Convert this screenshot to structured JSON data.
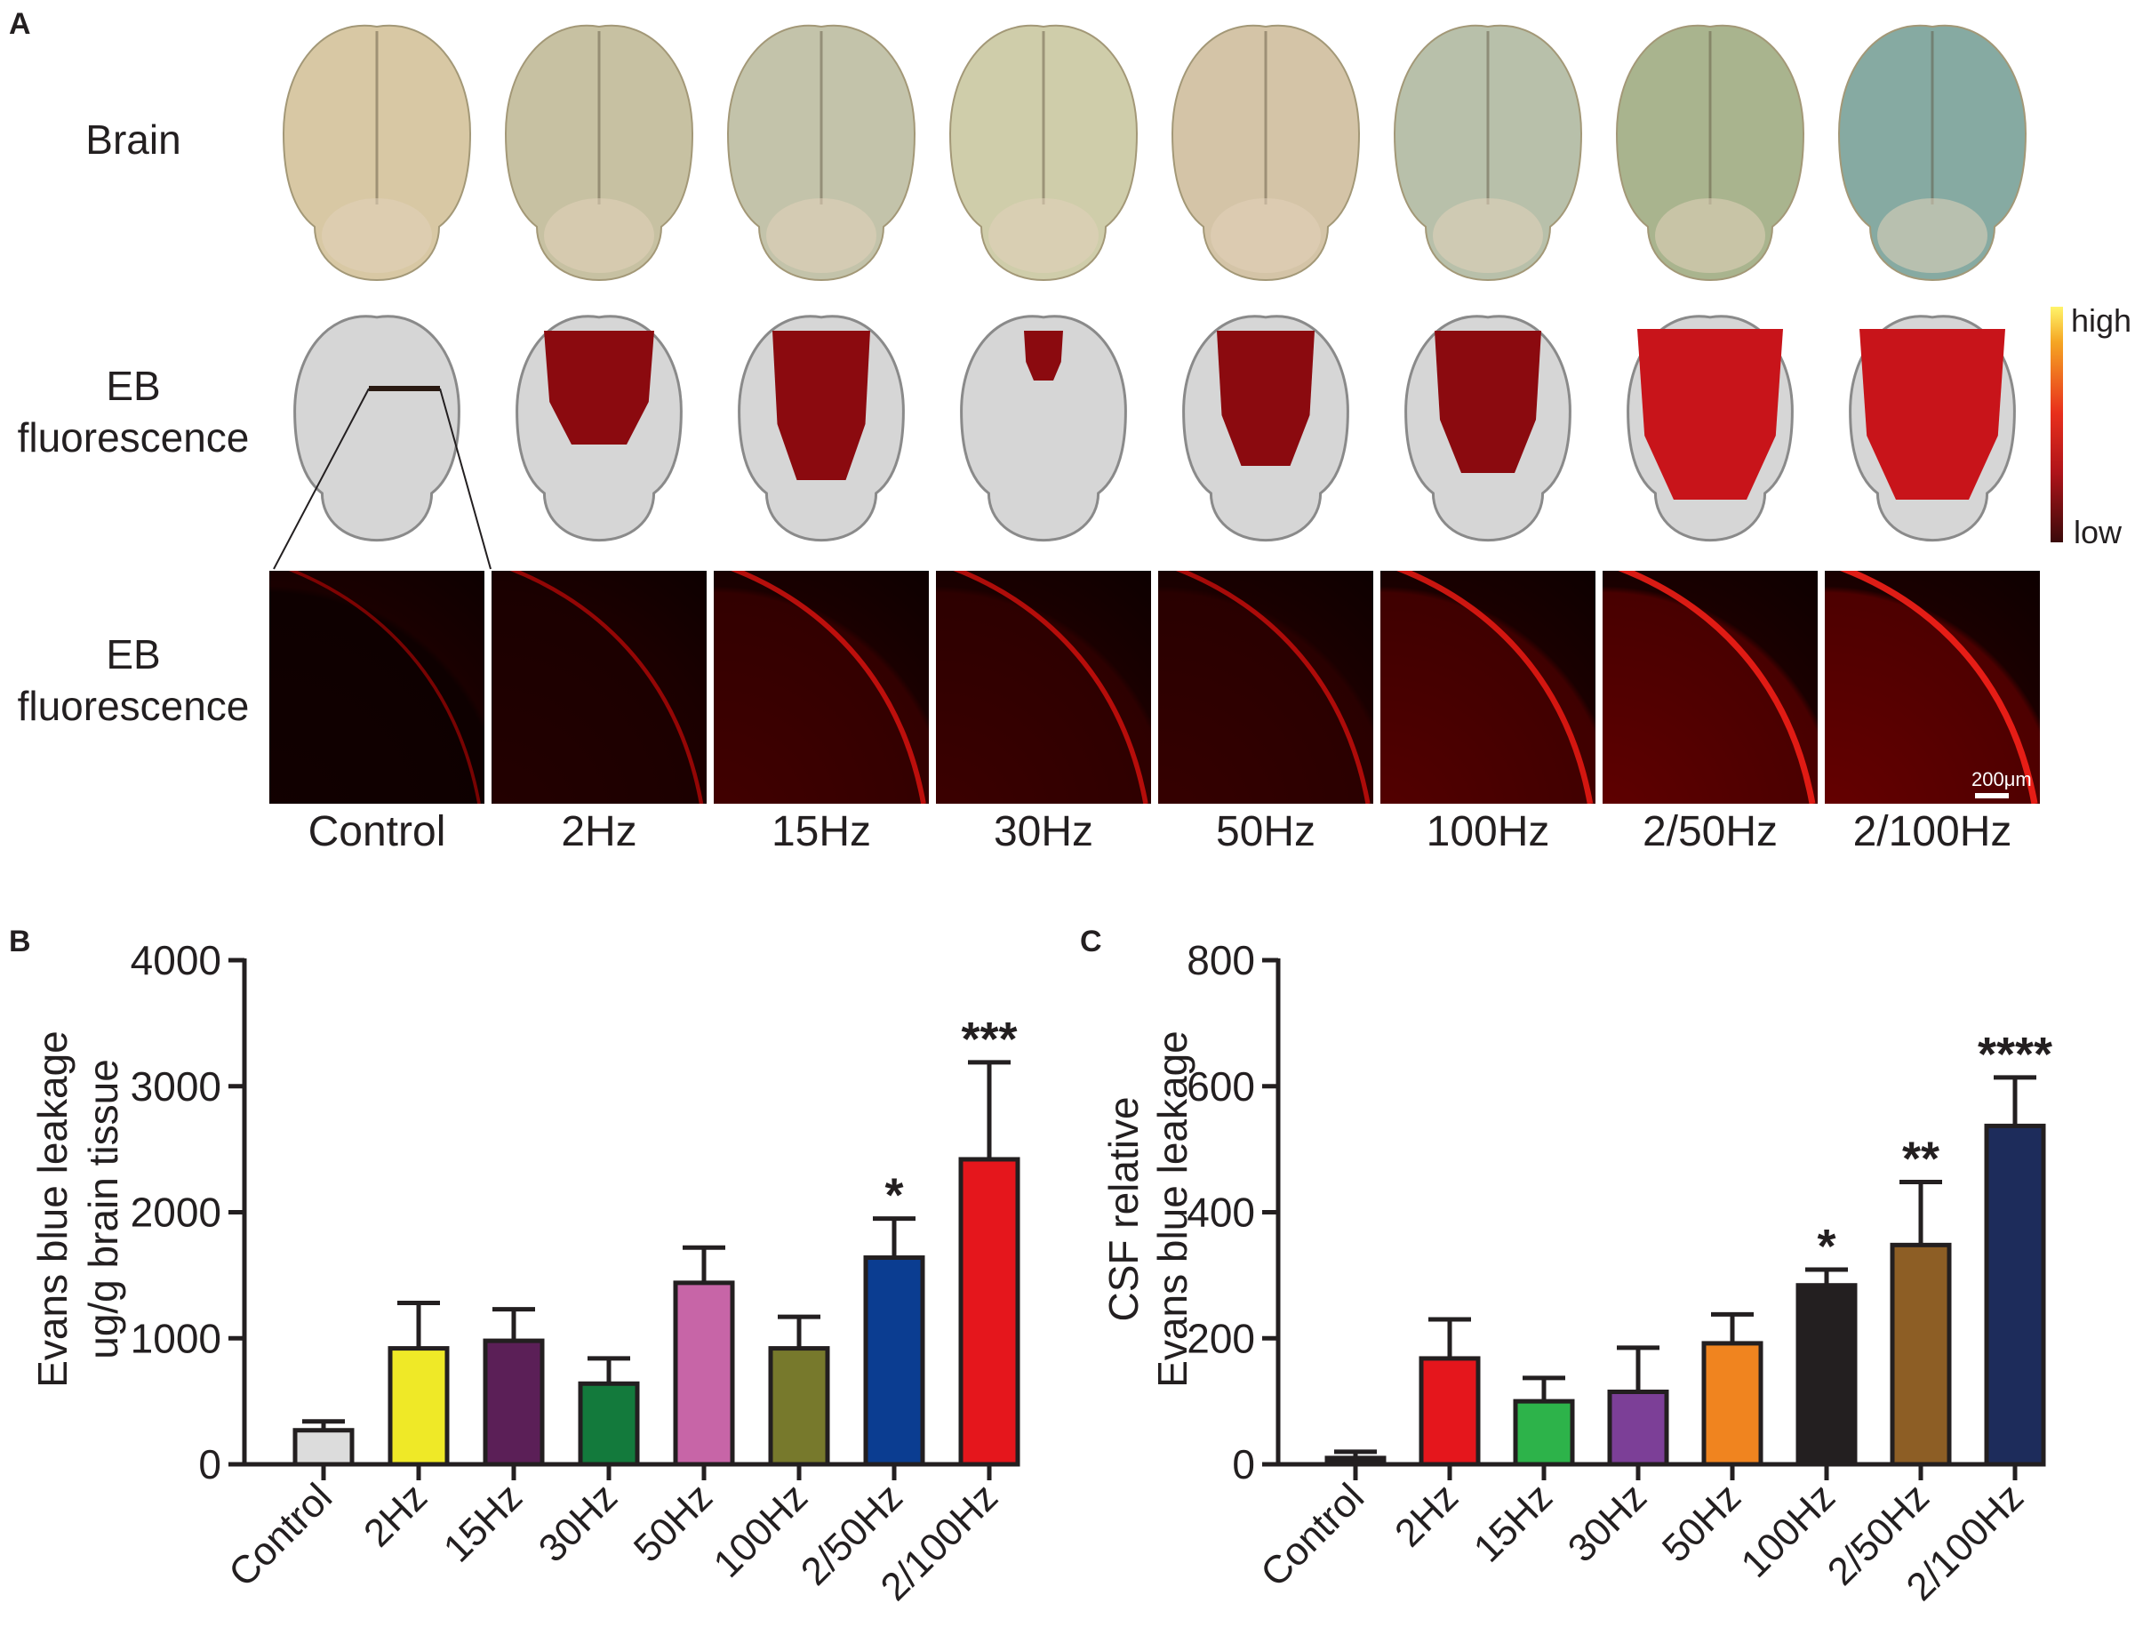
{
  "panel_a": {
    "label": "A",
    "row_labels": {
      "brain": "Brain",
      "eb_fluorescence_1": "EB\nfluorescence",
      "eb_fluorescence_2": "EB\nfluorescence"
    },
    "groups": [
      "Control",
      "2Hz",
      "15Hz",
      "30Hz",
      "50Hz",
      "100Hz",
      "2/50Hz",
      "2/100Hz"
    ],
    "colorbar": {
      "high_label": "high",
      "low_label": "low"
    },
    "scale_bar_label": "200μm",
    "photo_colors": [
      "#d8c8a4",
      "#c7c1a2",
      "#c3c3aa",
      "#cfcdaa",
      "#d4c4a7",
      "#b8c0aa",
      "#a9b48e",
      "#86aaa2"
    ],
    "red_intensity": [
      0.0,
      1.0,
      1.0,
      1.0,
      1.0,
      1.0,
      1.0,
      1.0
    ],
    "tile_brightness": [
      0.15,
      0.3,
      0.55,
      0.5,
      0.45,
      0.7,
      0.8,
      0.85
    ]
  },
  "chart_data": [
    {
      "panel_label": "B",
      "type": "bar",
      "title": "",
      "categories": [
        "Control",
        "2Hz",
        "15Hz",
        "30Hz",
        "50Hz",
        "100Hz",
        "2/50Hz",
        "2/100Hz"
      ],
      "values": [
        270,
        920,
        980,
        640,
        1440,
        920,
        1640,
        2420
      ],
      "errors": [
        70,
        360,
        250,
        200,
        280,
        250,
        310,
        770
      ],
      "significance": [
        "",
        "",
        "",
        "",
        "",
        "",
        "*",
        "***"
      ],
      "colors": [
        "#dcdcdc",
        "#efe927",
        "#5b1f57",
        "#137a3c",
        "#c765a7",
        "#77792c",
        "#0b3d91",
        "#e5161c"
      ],
      "ylabel_line1": "Evans blue leakage",
      "ylabel_line2": "ug/g brain tissue",
      "xlabel": "",
      "ylim": [
        0,
        4000
      ],
      "yticks": [
        "0",
        "1000",
        "2000",
        "3000",
        "4000"
      ],
      "ytick_values": [
        0,
        1000,
        2000,
        3000,
        4000
      ]
    },
    {
      "panel_label": "C",
      "type": "bar",
      "title": "",
      "categories": [
        "Control",
        "2Hz",
        "15Hz",
        "30Hz",
        "50Hz",
        "100Hz",
        "2/50Hz",
        "2/100Hz"
      ],
      "values": [
        10,
        168,
        100,
        115,
        192,
        284,
        348,
        537
      ],
      "errors": [
        10,
        62,
        37,
        70,
        46,
        25,
        100,
        77
      ],
      "significance": [
        "",
        "",
        "",
        "",
        "",
        "*",
        "**",
        "****"
      ],
      "colors": [
        "#231f20",
        "#e5161c",
        "#2db34a",
        "#7c3f97",
        "#f0841f",
        "#231f20",
        "#8d5e25",
        "#1d2c5b"
      ],
      "ylabel_line1": "CSF relative",
      "ylabel_line2": "Evans blue leakage",
      "xlabel": "",
      "ylim": [
        0,
        800
      ],
      "yticks": [
        "0",
        "200",
        "400",
        "600",
        "800"
      ],
      "ytick_values": [
        0,
        200,
        400,
        600,
        800
      ]
    }
  ]
}
